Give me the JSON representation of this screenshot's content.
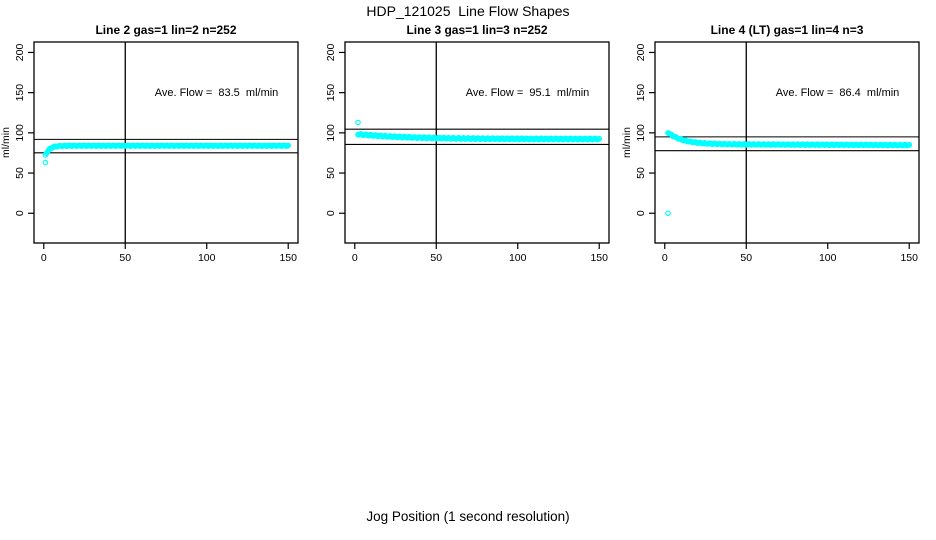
{
  "page": {
    "title": "HDP_121025  Line Flow Shapes",
    "xlabel": "Jog Position (1 second resolution)"
  },
  "colors": {
    "marker": "#00FFFF",
    "axis": "#000000",
    "background": "#FFFFFF"
  },
  "chart_data": [
    {
      "type": "scatter",
      "title": "Line 2 gas=1 lin=2 n=252",
      "ylabel": "ml/min",
      "xlabel_shared": "Jog Position (1 second resolution)",
      "annotation": "Ave. Flow =  83.5  ml/min",
      "ave_flow_ml_min": 83.5,
      "x_ticks": [
        0,
        50,
        100,
        150
      ],
      "y_ticks": [
        0,
        50,
        100,
        150,
        200
      ],
      "x_range": [
        -6,
        156
      ],
      "y_range": [
        -37,
        213
      ],
      "vline_x": 50,
      "hlines_y": [
        91.9,
        75.2
      ],
      "series": {
        "name": "line2-flow",
        "shape": "fast rise to plateau",
        "start_x": 1,
        "end_x": 150,
        "n_points": 250,
        "plateau": 84,
        "amplitude": -18,
        "tau": 2.5,
        "slope": 0,
        "wiggle": 0.5
      },
      "outlier_points": [
        [
          1,
          63
        ]
      ],
      "annotation_pos": [
        106,
        151
      ],
      "grid": "off",
      "legend": "none"
    },
    {
      "type": "scatter",
      "title": "Line 3 gas=1 lin=3 n=252",
      "ylabel": "",
      "xlabel_shared": "Jog Position (1 second resolution)",
      "annotation": "Ave. Flow =  95.1  ml/min",
      "ave_flow_ml_min": 95.1,
      "x_ticks": [
        0,
        50,
        100,
        150
      ],
      "y_ticks": [
        0,
        50,
        100,
        150,
        200
      ],
      "x_range": [
        -6,
        156
      ],
      "y_range": [
        -37,
        213
      ],
      "vline_x": 50,
      "hlines_y": [
        104.6,
        85.6
      ],
      "series": {
        "name": "line3-flow",
        "shape": "high spike then flat band ~93",
        "start_x": 2,
        "end_x": 150,
        "n_points": 250,
        "plateau": 92.3,
        "amplitude": 6.5,
        "tau": 30,
        "slope": 0,
        "wiggle": 0.8
      },
      "outlier_points": [
        [
          2,
          113
        ]
      ],
      "annotation_pos": [
        106,
        151
      ],
      "grid": "off",
      "legend": "none"
    },
    {
      "type": "scatter",
      "title": "Line 4 (LT) gas=1 lin=4 n=3",
      "ylabel": "ml/min",
      "xlabel_shared": "Jog Position (1 second resolution)",
      "annotation": "Ave. Flow =  86.4  ml/min",
      "ave_flow_ml_min": 86.4,
      "x_ticks": [
        0,
        50,
        100,
        150
      ],
      "y_ticks": [
        0,
        50,
        100,
        150,
        200
      ],
      "x_range": [
        -6,
        156
      ],
      "y_range": [
        -37,
        213
      ],
      "vline_x": 50,
      "hlines_y": [
        95.0,
        77.8
      ],
      "series": {
        "name": "line4-flow",
        "shape": "decay from ~100 to plateau ~85",
        "start_x": 2,
        "end_x": 150,
        "n_points": 250,
        "plateau": 86,
        "amplitude": 18,
        "tau": 9,
        "slope": -0.008,
        "wiggle": 0.6
      },
      "outlier_points": [
        [
          2,
          0
        ]
      ],
      "annotation_pos": [
        106,
        151
      ],
      "grid": "off",
      "legend": "none"
    }
  ]
}
